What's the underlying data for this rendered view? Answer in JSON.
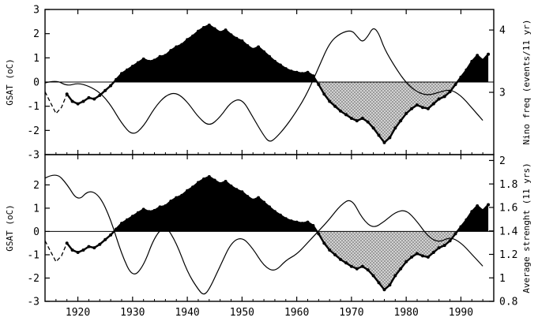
{
  "figure": {
    "description": "Two stacked time-series panels: GSAT anomaly (thick beaded line, black fill above zero, stippled gray fill below zero after 1963) with thin overlay curves of Nino frequency (top) and average Nino strength (bottom)"
  },
  "chart_data": {
    "type": "line",
    "title": "",
    "x": {
      "label": "",
      "range": [
        1914,
        1996
      ],
      "major_ticks": [
        1920,
        1930,
        1940,
        1950,
        1960,
        1970,
        1980,
        1990
      ],
      "minor_step": 2
    },
    "series": {
      "gsat": {
        "name": "GSAT anomaly",
        "start_year": 1914,
        "step": 1,
        "dashed_until": 1918,
        "negative_fill_from": 1963.4,
        "values": [
          -0.4,
          -0.85,
          -1.3,
          -1.05,
          -0.5,
          -0.8,
          -0.9,
          -0.8,
          -0.65,
          -0.7,
          -0.55,
          -0.35,
          -0.15,
          0.1,
          0.35,
          0.5,
          0.65,
          0.8,
          0.95,
          0.85,
          0.9,
          1.05,
          1.1,
          1.3,
          1.45,
          1.55,
          1.75,
          1.9,
          2.1,
          2.25,
          2.35,
          2.2,
          2.05,
          2.15,
          1.95,
          1.8,
          1.7,
          1.5,
          1.35,
          1.45,
          1.25,
          1.05,
          0.85,
          0.7,
          0.55,
          0.45,
          0.4,
          0.35,
          0.4,
          0.25,
          -0.1,
          -0.5,
          -0.8,
          -1.0,
          -1.2,
          -1.35,
          -1.5,
          -1.6,
          -1.5,
          -1.65,
          -1.9,
          -2.2,
          -2.5,
          -2.3,
          -1.9,
          -1.6,
          -1.3,
          -1.1,
          -0.95,
          -1.05,
          -1.1,
          -0.9,
          -0.7,
          -0.6,
          -0.4,
          -0.1,
          0.2,
          0.5,
          0.85,
          1.1,
          0.9,
          1.15
        ]
      },
      "nino_freq": {
        "name": "Nino frequency",
        "points": [
          [
            1914,
            3.15
          ],
          [
            1916,
            3.2
          ],
          [
            1918,
            3.1
          ],
          [
            1920,
            3.15
          ],
          [
            1922,
            3.1
          ],
          [
            1924,
            3.0
          ],
          [
            1926,
            2.8
          ],
          [
            1928,
            2.5
          ],
          [
            1930,
            2.3
          ],
          [
            1932,
            2.45
          ],
          [
            1934,
            2.75
          ],
          [
            1936,
            2.95
          ],
          [
            1938,
            3.0
          ],
          [
            1940,
            2.85
          ],
          [
            1942,
            2.6
          ],
          [
            1944,
            2.45
          ],
          [
            1946,
            2.6
          ],
          [
            1948,
            2.85
          ],
          [
            1950,
            2.9
          ],
          [
            1952,
            2.6
          ],
          [
            1954,
            2.3
          ],
          [
            1955,
            2.2
          ],
          [
            1956,
            2.25
          ],
          [
            1958,
            2.45
          ],
          [
            1960,
            2.7
          ],
          [
            1962,
            3.0
          ],
          [
            1964,
            3.4
          ],
          [
            1966,
            3.8
          ],
          [
            1968,
            3.95
          ],
          [
            1970,
            4.0
          ],
          [
            1971,
            3.9
          ],
          [
            1972,
            3.8
          ],
          [
            1973,
            3.9
          ],
          [
            1974,
            4.05
          ],
          [
            1975,
            3.95
          ],
          [
            1976,
            3.7
          ],
          [
            1978,
            3.4
          ],
          [
            1980,
            3.15
          ],
          [
            1982,
            3.0
          ],
          [
            1984,
            2.95
          ],
          [
            1986,
            3.0
          ],
          [
            1988,
            3.05
          ],
          [
            1990,
            2.95
          ],
          [
            1992,
            2.75
          ],
          [
            1994,
            2.55
          ]
        ]
      },
      "avg_strength": {
        "name": "Average strength",
        "points": [
          [
            1914,
            1.85
          ],
          [
            1916,
            1.9
          ],
          [
            1918,
            1.8
          ],
          [
            1920,
            1.65
          ],
          [
            1922,
            1.75
          ],
          [
            1924,
            1.7
          ],
          [
            1926,
            1.5
          ],
          [
            1928,
            1.2
          ],
          [
            1930,
            1.0
          ],
          [
            1932,
            1.1
          ],
          [
            1934,
            1.35
          ],
          [
            1936,
            1.45
          ],
          [
            1938,
            1.3
          ],
          [
            1940,
            1.05
          ],
          [
            1942,
            0.9
          ],
          [
            1943,
            0.85
          ],
          [
            1944,
            0.9
          ],
          [
            1946,
            1.1
          ],
          [
            1948,
            1.3
          ],
          [
            1950,
            1.35
          ],
          [
            1952,
            1.25
          ],
          [
            1954,
            1.1
          ],
          [
            1956,
            1.05
          ],
          [
            1958,
            1.15
          ],
          [
            1960,
            1.2
          ],
          [
            1962,
            1.3
          ],
          [
            1964,
            1.4
          ],
          [
            1966,
            1.5
          ],
          [
            1968,
            1.62
          ],
          [
            1970,
            1.68
          ],
          [
            1972,
            1.5
          ],
          [
            1974,
            1.42
          ],
          [
            1976,
            1.48
          ],
          [
            1978,
            1.56
          ],
          [
            1980,
            1.58
          ],
          [
            1982,
            1.48
          ],
          [
            1984,
            1.35
          ],
          [
            1986,
            1.3
          ],
          [
            1988,
            1.35
          ],
          [
            1990,
            1.3
          ],
          [
            1992,
            1.2
          ],
          [
            1994,
            1.1
          ]
        ]
      }
    },
    "panels": [
      {
        "id": "top",
        "left_axis": {
          "label": "GSAT (oC)",
          "range": [
            -3,
            3
          ],
          "ticks": [
            3,
            2,
            1,
            0,
            -1,
            -2,
            -3
          ]
        },
        "right_axis": {
          "label": "Nino freq (events/11 yr)",
          "range": [
            2,
            4.33
          ],
          "ticks": [
            4,
            3
          ]
        },
        "filled_series": "gsat",
        "thin_series": "nino_freq",
        "show_x_labels": false
      },
      {
        "id": "bottom",
        "left_axis": {
          "label": "GSAT (oC)",
          "range": [
            -3,
            3.3
          ],
          "ticks": [
            2,
            1,
            0,
            -1,
            -2,
            -3
          ]
        },
        "right_axis": {
          "label": "Average strenght (11 yrs)",
          "range": [
            0.8,
            2.05
          ],
          "ticks": [
            2,
            1.8,
            1.6,
            1.4,
            1.2,
            1,
            0.8
          ]
        },
        "filled_series": "gsat",
        "thin_series": "avg_strength",
        "show_x_labels": true
      }
    ],
    "colors": {
      "line": "#000000",
      "positive_fill": "#000000",
      "negative_fill_base": "#d2d2d2",
      "negative_fill_dots": "#5a5a5a",
      "background": "#ffffff"
    }
  }
}
